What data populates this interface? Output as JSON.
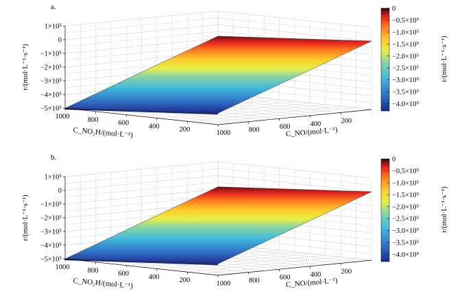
{
  "chart_data": [
    {
      "type": "surface",
      "panel_label": "a.",
      "z_axis_label": "r/(mol·L⁻¹·s⁻¹)",
      "z_ticks": [
        "1×10⁵",
        "0",
        "−1×10⁵",
        "−2×10⁵",
        "−3×10⁵",
        "−4×10⁵",
        "−5×10⁵"
      ],
      "z_tick_values": [
        100000,
        0,
        -100000,
        -200000,
        -300000,
        -400000,
        -500000
      ],
      "x_axis_label": "C_NO₂H/(mol·L⁻¹)",
      "x_ticks": [
        "1000",
        "800",
        "600",
        "400",
        "200"
      ],
      "y_axis_label": "C_NO/(mol·L⁻¹)",
      "y_ticks": [
        "1000",
        "800",
        "600",
        "400",
        "200"
      ],
      "zlim": [
        -500000,
        100000
      ],
      "surface_range": [
        -500000,
        0
      ],
      "grid": true,
      "colorbar": {
        "label": "r/(mol·L⁻¹·s⁻¹)",
        "ticks": [
          "0",
          "−0.5×10⁵",
          "−1.0×10⁵",
          "−1.5×10⁵",
          "−2.0×10⁵",
          "−2.5×10⁵",
          "−3.0×10⁵",
          "−3.5×10⁵",
          "−4.0×10⁵"
        ],
        "tick_values": [
          0,
          -50000,
          -100000,
          -150000,
          -200000,
          -250000,
          -300000,
          -350000,
          -400000
        ],
        "range": [
          -430000,
          0
        ]
      }
    },
    {
      "type": "surface",
      "panel_label": "b.",
      "z_axis_label": "r/(mol·L⁻¹·s⁻¹)",
      "z_ticks": [
        "1×10⁵",
        "0",
        "−1×10⁵",
        "−2×10⁵",
        "−3×10⁵",
        "−4×10⁵",
        "−5×10⁵"
      ],
      "z_tick_values": [
        100000,
        0,
        -100000,
        -200000,
        -300000,
        -400000,
        -500000
      ],
      "x_axis_label": "C_NO₂H/(mol·L⁻¹)",
      "x_ticks": [
        "1000",
        "800",
        "600",
        "400",
        "200"
      ],
      "y_axis_label": "C_NO/(mol·L⁻¹)",
      "y_ticks": [
        "1000",
        "800",
        "600",
        "400",
        "200"
      ],
      "zlim": [
        -500000,
        100000
      ],
      "surface_range": [
        -500000,
        0
      ],
      "grid": true,
      "colorbar": {
        "label": "r/(mol·L⁻¹·s⁻¹)",
        "ticks": [
          "0",
          "−0.5×10⁵",
          "−1.0×10⁵",
          "−1.5×10⁵",
          "−2.0×10⁵",
          "−2.5×10⁵",
          "−3.0×10⁵",
          "−3.5×10⁵",
          "−4.0×10⁵"
        ],
        "tick_values": [
          0,
          -50000,
          -100000,
          -150000,
          -200000,
          -250000,
          -300000,
          -350000,
          -400000
        ],
        "range": [
          -430000,
          0
        ]
      }
    }
  ],
  "colors": {
    "colormap": [
      "#00008f",
      "#0030c0",
      "#2a8ad6",
      "#22b6d8",
      "#7fd3a8",
      "#dde840",
      "#ffd12a",
      "#ff8a1e",
      "#e8231c",
      "#7a0b0b"
    ]
  }
}
